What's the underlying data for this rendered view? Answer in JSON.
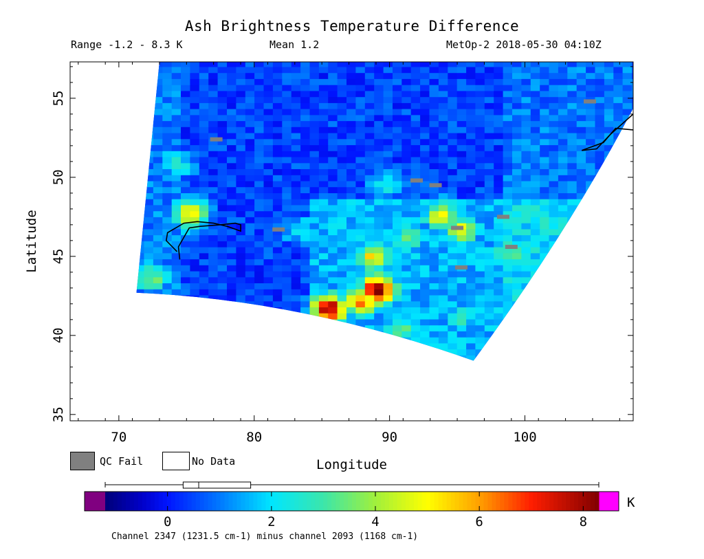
{
  "header": {
    "title": "Ash Brightness Temperature Difference",
    "range": "Range -1.2 - 8.3 K",
    "mean": "Mean 1.2",
    "satellite_time": "MetOp-2 2018-05-30 04:10Z"
  },
  "map": {
    "x_axis": {
      "label": "Longitude",
      "range": [
        66.4,
        108.0
      ],
      "ticks": [
        70,
        80,
        90,
        100
      ],
      "tick_labels": [
        "70",
        "80",
        "90",
        "100"
      ]
    },
    "y_axis": {
      "label": "Latitude",
      "range": [
        34.6,
        57.3
      ],
      "ticks": [
        35,
        40,
        45,
        50,
        55
      ],
      "tick_labels": [
        "35",
        "40",
        "45",
        "50",
        "55"
      ]
    },
    "swath_corners": {
      "top_left": [
        73.0,
        57.3
      ],
      "top_right": [
        108.0,
        57.3
      ],
      "bottom_left": [
        71.3,
        42.7
      ],
      "bottom_right": [
        96.2,
        38.4
      ]
    },
    "hotspots": [
      {
        "lon": 85.2,
        "lat": 41.5,
        "value": 8.0
      },
      {
        "lon": 88.8,
        "lat": 42.7,
        "value": 8.2
      },
      {
        "lon": 87.6,
        "lat": 41.9,
        "value": 6.0
      },
      {
        "lon": 88.5,
        "lat": 44.8,
        "value": 5.2
      },
      {
        "lon": 93.5,
        "lat": 47.4,
        "value": 5.0
      },
      {
        "lon": 95.0,
        "lat": 46.5,
        "value": 4.6
      },
      {
        "lon": 74.9,
        "lat": 47.5,
        "value": 5.4
      },
      {
        "lon": 72.0,
        "lat": 43.5,
        "value": 3.6
      },
      {
        "lon": 91.0,
        "lat": 46.0,
        "value": 3.4
      },
      {
        "lon": 98.5,
        "lat": 45.0,
        "value": 3.3
      },
      {
        "lon": 90.5,
        "lat": 40.2,
        "value": 3.2
      },
      {
        "lon": 101.0,
        "lat": 47.0,
        "value": 2.6
      },
      {
        "lon": 95.0,
        "lat": 41.0,
        "value": 2.8
      },
      {
        "lon": 89.5,
        "lat": 49.5,
        "value": 2.4
      },
      {
        "lon": 83.0,
        "lat": 46.5,
        "value": 2.2
      },
      {
        "lon": 74.0,
        "lat": 50.7,
        "value": 2.5
      }
    ],
    "qc_fail_points": [
      [
        77.2,
        52.4
      ],
      [
        104.8,
        54.8
      ],
      [
        93.4,
        49.5
      ],
      [
        99.0,
        45.6
      ],
      [
        95.0,
        46.8
      ],
      [
        95.3,
        44.3
      ],
      [
        92.0,
        49.8
      ],
      [
        81.8,
        46.7
      ],
      [
        98.4,
        47.5
      ]
    ],
    "coastlines": [
      [
        [
          74.3,
          45.3
        ],
        [
          73.5,
          46.0
        ],
        [
          73.6,
          46.5
        ],
        [
          74.8,
          47.1
        ],
        [
          75.8,
          47.2
        ],
        [
          77.0,
          47.1
        ],
        [
          78.0,
          46.9
        ],
        [
          79.0,
          46.6
        ],
        [
          79.0,
          47.0
        ],
        [
          78.6,
          47.1
        ],
        [
          77.5,
          47.0
        ],
        [
          76.0,
          46.9
        ],
        [
          75.2,
          46.8
        ],
        [
          74.4,
          45.6
        ],
        [
          74.5,
          44.8
        ]
      ],
      [
        [
          104.2,
          51.7
        ],
        [
          105.3,
          51.8
        ],
        [
          106.3,
          52.7
        ],
        [
          108.0,
          54.0
        ]
      ],
      [
        [
          104.2,
          51.7
        ],
        [
          105.8,
          52.2
        ],
        [
          106.7,
          53.1
        ],
        [
          108.0,
          53.0
        ]
      ]
    ]
  },
  "legend": {
    "qc_fail": "QC Fail",
    "no_data": "No Data",
    "qc_fail_color": "#808080",
    "no_data_color": "#ffffff"
  },
  "colorbar": {
    "unit": "K",
    "range": [
      -1.2,
      8.3
    ],
    "ticks": [
      0,
      2,
      4,
      6,
      8
    ],
    "tick_labels": [
      "0",
      "2",
      "4",
      "6",
      "8"
    ],
    "underflow_color": "#800080",
    "overflow_color": "#ff00ff",
    "boxplot": {
      "min": -1.2,
      "q1": 0.3,
      "median": 0.6,
      "q3": 1.6,
      "max": 8.3
    },
    "caption": "Channel 2347 (1231.5 cm-1) minus channel 2093 (1168 cm-1)"
  }
}
